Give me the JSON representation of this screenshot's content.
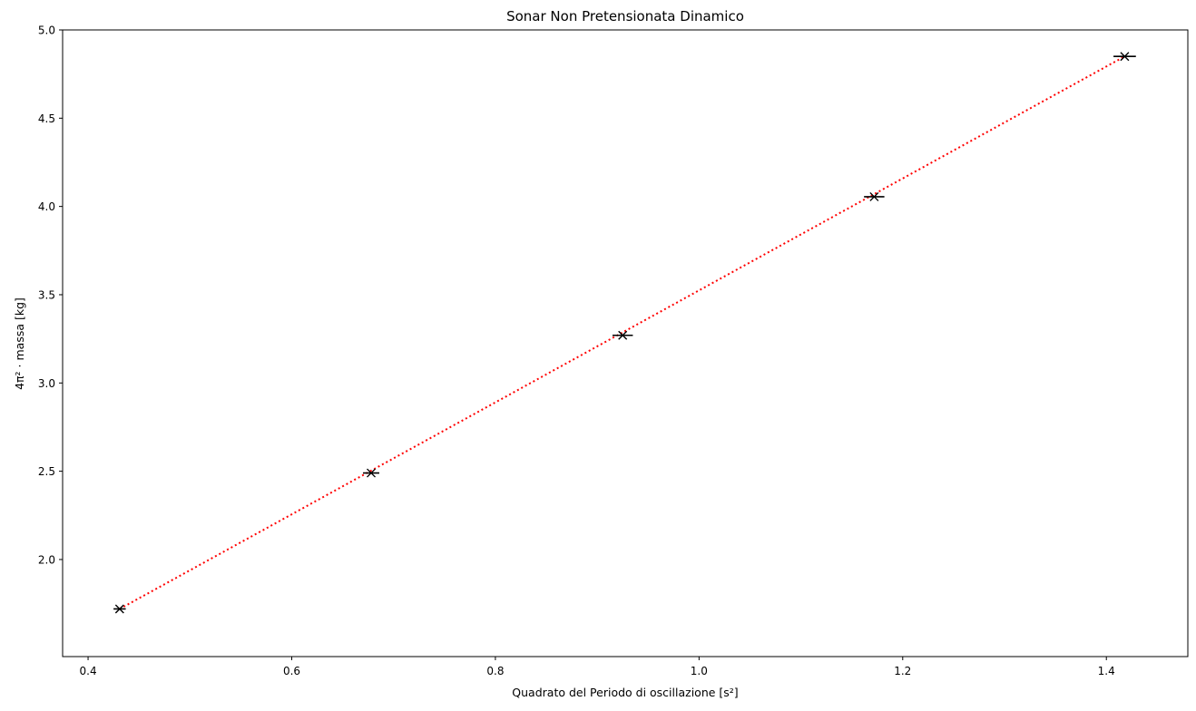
{
  "chart_data": {
    "type": "scatter",
    "title": "Sonar Non Pretensionata Dinamico",
    "xlabel": "Quadrato del Periodo di oscillazione [s²]",
    "ylabel": "4π² · massa [kg]",
    "xlim": [
      0.375,
      1.48
    ],
    "ylim": [
      1.45,
      5.0
    ],
    "xticks": [
      0.4,
      0.6,
      0.8,
      1.0,
      1.2,
      1.4
    ],
    "xtick_labels": [
      "0.4",
      "0.6",
      "0.8",
      "1.0",
      "1.2",
      "1.4"
    ],
    "yticks": [
      2.0,
      2.5,
      3.0,
      3.5,
      4.0,
      4.5,
      5.0
    ],
    "ytick_labels": [
      "2.0",
      "2.5",
      "3.0",
      "3.5",
      "4.0",
      "4.5",
      "5.0"
    ],
    "grid": false,
    "series": [
      {
        "kind": "points_with_xerr",
        "marker": "x",
        "color": "#000000",
        "x": [
          0.431,
          0.678,
          0.925,
          1.172,
          1.418
        ],
        "y": [
          1.72,
          2.49,
          3.27,
          4.055,
          4.85
        ],
        "xerr": [
          0.006,
          0.008,
          0.01,
          0.01,
          0.011
        ]
      },
      {
        "kind": "fit_line",
        "style": "dotted",
        "color": "#ff0000",
        "x": [
          0.431,
          1.418
        ],
        "y": [
          1.72,
          4.85
        ]
      }
    ]
  }
}
